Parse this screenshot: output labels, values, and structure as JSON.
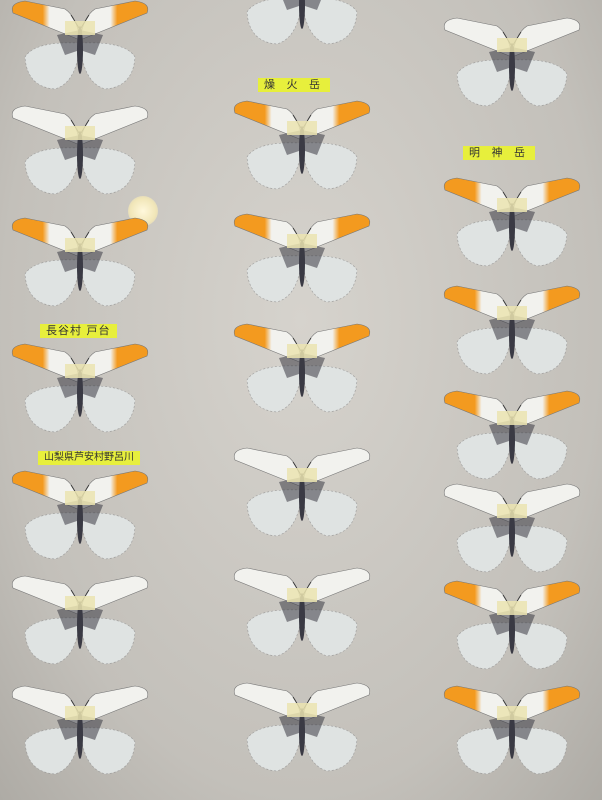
{
  "locality_labels": [
    {
      "text": "燥 火 岳"
    },
    {
      "text": "明 神 岳"
    },
    {
      "text": "長谷村 戸台"
    },
    {
      "text": "山梨県芦安村野呂川"
    }
  ],
  "colors": {
    "orange_tip": "#f39a1f",
    "wing_white": "#f2f2ee",
    "vein_dark": "#3a3a44",
    "locality_label": "#e7ef3c"
  },
  "columns": [
    {
      "specimens": [
        "orange",
        "white",
        "orange",
        "orange",
        "orange",
        "white",
        "white"
      ]
    },
    {
      "specimens": [
        "white",
        "orange",
        "orange",
        "orange",
        "white",
        "white",
        "white"
      ]
    },
    {
      "specimens": [
        "white",
        "orange",
        "orange",
        "orange",
        "white",
        "orange",
        "orange"
      ]
    }
  ]
}
